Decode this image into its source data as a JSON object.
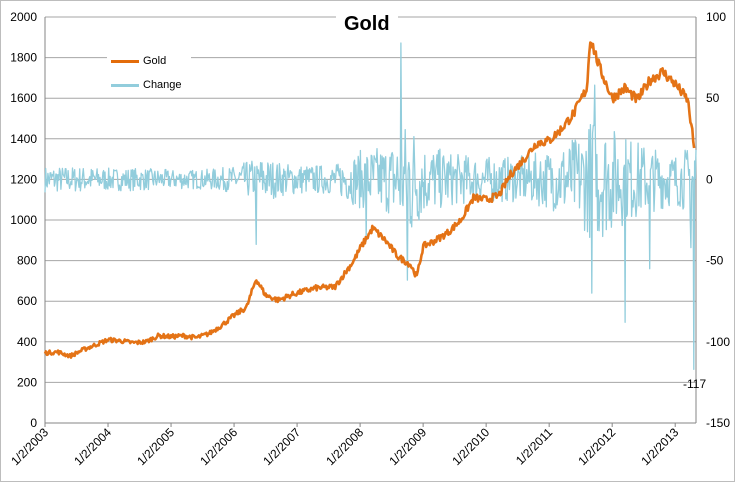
{
  "chart_data": {
    "type": "line",
    "title": "Gold",
    "legend_position": "top-left",
    "grid": true,
    "x_ticks": [
      "1/2/2003",
      "1/2/2004",
      "1/2/2005",
      "1/2/2006",
      "1/2/2007",
      "1/2/2008",
      "1/2/2009",
      "1/2/2010",
      "1/2/2011",
      "1/2/2012",
      "1/2/2013"
    ],
    "y_left": {
      "range": [
        0,
        2000
      ],
      "ticks": [
        "0",
        "200",
        "400",
        "600",
        "800",
        "1000",
        "1200",
        "1400",
        "1600",
        "1800",
        "2000"
      ]
    },
    "y_right": {
      "range": [
        -150,
        100
      ],
      "ticks": [
        "-150",
        "-100",
        "-50",
        "0",
        "50",
        "100"
      ]
    },
    "series": [
      {
        "name": "Gold",
        "axis": "left",
        "color": "#E36C0A",
        "x": [
          2003.0,
          2003.2,
          2003.4,
          2003.6,
          2003.8,
          2004.0,
          2004.2,
          2004.4,
          2004.6,
          2004.8,
          2005.0,
          2005.2,
          2005.4,
          2005.6,
          2005.8,
          2006.0,
          2006.2,
          2006.35,
          2006.5,
          2006.7,
          2006.9,
          2007.0,
          2007.3,
          2007.6,
          2007.9,
          2008.0,
          2008.2,
          2008.4,
          2008.6,
          2008.8,
          2008.9,
          2009.0,
          2009.2,
          2009.4,
          2009.6,
          2009.8,
          2010.0,
          2010.2,
          2010.4,
          2010.6,
          2010.8,
          2011.0,
          2011.2,
          2011.4,
          2011.6,
          2011.65,
          2011.8,
          2012.0,
          2012.2,
          2012.4,
          2012.6,
          2012.8,
          2013.0,
          2013.2,
          2013.3
        ],
        "y": [
          345,
          350,
          330,
          360,
          385,
          410,
          405,
          395,
          400,
          430,
          425,
          430,
          420,
          440,
          480,
          530,
          570,
          710,
          630,
          605,
          630,
          640,
          665,
          670,
          800,
          860,
          960,
          900,
          820,
          780,
          720,
          870,
          900,
          940,
          1000,
          1110,
          1100,
          1120,
          1230,
          1300,
          1380,
          1390,
          1450,
          1530,
          1650,
          1900,
          1750,
          1600,
          1650,
          1590,
          1690,
          1730,
          1670,
          1590,
          1360
        ]
      },
      {
        "name": "Change",
        "axis": "right",
        "color": "#92CDDC",
        "x": [
          2003.0,
          2003.5,
          2004.0,
          2004.5,
          2005.0,
          2005.5,
          2006.0,
          2006.4,
          2006.8,
          2007.2,
          2007.6,
          2008.0,
          2008.5,
          2008.8,
          2009.0,
          2009.5,
          2010.0,
          2010.5,
          2011.0,
          2011.5,
          2011.7,
          2012.0,
          2012.5,
          2012.8,
          2013.0,
          2013.2,
          2013.3
        ],
        "amplitude": [
          8,
          8,
          7,
          7,
          6,
          6,
          8,
          14,
          10,
          9,
          9,
          18,
          22,
          40,
          22,
          16,
          14,
          14,
          18,
          28,
          40,
          32,
          22,
          18,
          16,
          20,
          40
        ],
        "spikes": [
          {
            "x": 2006.35,
            "y": -40
          },
          {
            "x": 2008.1,
            "y": -38
          },
          {
            "x": 2008.65,
            "y": 84
          },
          {
            "x": 2008.75,
            "y": -62
          },
          {
            "x": 2011.68,
            "y": -70
          },
          {
            "x": 2011.72,
            "y": 58
          },
          {
            "x": 2012.2,
            "y": -88
          },
          {
            "x": 2012.6,
            "y": -55
          },
          {
            "x": 2013.25,
            "y": -42
          },
          {
            "x": 2013.3,
            "y": -117
          }
        ]
      }
    ],
    "annotations": [
      "-117"
    ]
  }
}
